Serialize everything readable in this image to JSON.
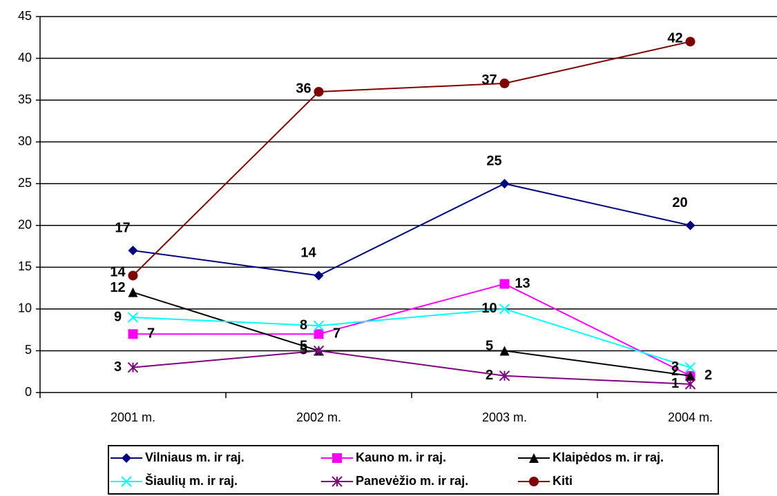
{
  "chart_data": {
    "type": "line",
    "categories": [
      "2001 m.",
      "2002 m.",
      "2003 m.",
      "2004 m."
    ],
    "series": [
      {
        "name": "Vilniaus m. ir raj.",
        "color": "#000080",
        "marker": "diamond",
        "values": [
          17,
          14,
          25,
          20
        ]
      },
      {
        "name": "Kauno m. ir raj.",
        "color": "#ff00ff",
        "marker": "square",
        "values": [
          7,
          7,
          13,
          2
        ]
      },
      {
        "name": "Klaipėdos m. ir raj.",
        "color": "#000000",
        "marker": "triangle",
        "values": [
          12,
          5,
          5,
          2
        ]
      },
      {
        "name": "Šiaulių m. ir raj.",
        "color": "#00ffff",
        "marker": "x",
        "values": [
          9,
          8,
          10,
          3
        ]
      },
      {
        "name": "Panevėžio m. ir raj.",
        "color": "#800080",
        "marker": "star",
        "values": [
          3,
          5,
          2,
          1
        ]
      },
      {
        "name": "Kiti",
        "color": "#800000",
        "marker": "circle",
        "values": [
          14,
          36,
          37,
          42
        ]
      }
    ],
    "ylim": [
      0,
      45
    ],
    "yticks": [
      0,
      5,
      10,
      15,
      20,
      25,
      30,
      35,
      40,
      45
    ],
    "grid": true,
    "legend": "bottom"
  }
}
